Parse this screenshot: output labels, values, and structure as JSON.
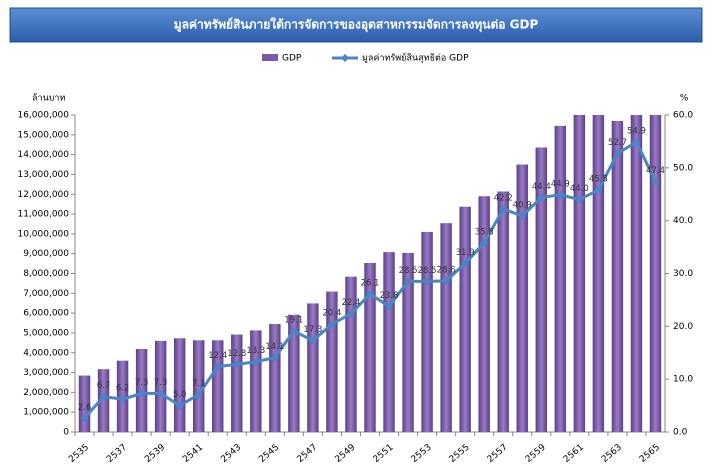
{
  "chart_data": {
    "type": "bar_line",
    "title": "มูลค่าทรัพย์สินภายใต้การจัดการของอุตสาหกรรมจัดการลงทุนต่อ GDP",
    "y_label": "ล้านบาท",
    "y2_label": "%",
    "categories": [
      "2535",
      null,
      "2537",
      null,
      "2539",
      null,
      "2541",
      null,
      "2543",
      null,
      "2545",
      null,
      "2547",
      null,
      "2549",
      null,
      "2551",
      null,
      "2553",
      null,
      "2555",
      null,
      "2557",
      null,
      "2559",
      null,
      "2561",
      null,
      "2563",
      null,
      "2565"
    ],
    "series": [
      {
        "name": "GDP",
        "type": "bar",
        "color": "#7b5aa6",
        "values": [
          2850000,
          3170000,
          3600000,
          4190000,
          4600000,
          4730000,
          4630000,
          4630000,
          4920000,
          5130000,
          5450000,
          5920000,
          6490000,
          7090000,
          7840000,
          8530000,
          9080000,
          9040000,
          10100000,
          10540000,
          11370000,
          11900000,
          12140000,
          13500000,
          14360000,
          15450000,
          16000000,
          16000000,
          15700000,
          16000000,
          16000000
        ]
      },
      {
        "name": "มูลค่าทรัพย์สินสุทธิต่อ GDP",
        "type": "line",
        "axis": "y2",
        "color": "#4a86c5",
        "values": [
          2.6,
          6.7,
          6.2,
          7.3,
          7.3,
          5.0,
          7.1,
          12.4,
          12.8,
          13.3,
          14.1,
          19.1,
          17.3,
          20.4,
          22.4,
          26.1,
          23.8,
          28.5,
          28.5,
          28.6,
          31.9,
          35.8,
          42.2,
          40.9,
          44.4,
          44.9,
          44.0,
          45.8,
          52.7,
          54.9,
          47.4
        ],
        "value_labels": [
          "2.6",
          "6.7",
          "6.2",
          "7.3",
          "7.3",
          "5.0",
          "7.1",
          "12.4",
          "12.8",
          "13.3",
          "14.1",
          "19.1",
          "17.3",
          "20.4",
          "22.4",
          "26.1",
          "23.8",
          "28.5",
          "28.5",
          "28.6",
          "31.9",
          "35.8",
          "42.2",
          "40.9",
          "44.4",
          "44.9",
          "44.0",
          "45.8",
          "52.7",
          "54.9",
          "47.4"
        ]
      }
    ],
    "ylim": [
      0,
      16000000
    ],
    "yticks": [
      {
        "value": 0,
        "label": "0"
      },
      {
        "value": 1000000,
        "label": "1,000,000"
      },
      {
        "value": 2000000,
        "label": "2,000,000"
      },
      {
        "value": 3000000,
        "label": "3,000,000"
      },
      {
        "value": 4000000,
        "label": "4,000,000"
      },
      {
        "value": 5000000,
        "label": "5,000,000"
      },
      {
        "value": 6000000,
        "label": "6,000,000"
      },
      {
        "value": 7000000,
        "label": "7,000,000"
      },
      {
        "value": 8000000,
        "label": "8,000,000"
      },
      {
        "value": 9000000,
        "label": "9,000,000"
      },
      {
        "value": 10000000,
        "label": "10,000,000"
      },
      {
        "value": 11000000,
        "label": "11,000,000"
      },
      {
        "value": 12000000,
        "label": "12,000,000"
      },
      {
        "value": 13000000,
        "label": "13,000,000"
      },
      {
        "value": 14000000,
        "label": "14,000,000"
      },
      {
        "value": 15000000,
        "label": "15,000,000"
      },
      {
        "value": 16000000,
        "label": "16,000,000"
      }
    ],
    "y2lim": [
      0,
      60
    ],
    "y2ticks": [
      {
        "value": 0,
        "label": "0.0"
      },
      {
        "value": 10,
        "label": "10.0"
      },
      {
        "value": 20,
        "label": "20.0"
      },
      {
        "value": 30,
        "label": "30.0"
      },
      {
        "value": 40,
        "label": "40.0"
      },
      {
        "value": 50,
        "label": "50.0"
      },
      {
        "value": 60,
        "label": "60.0"
      }
    ],
    "grid": false,
    "legend": "top"
  }
}
